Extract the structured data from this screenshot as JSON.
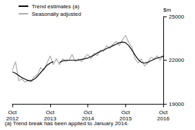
{
  "chart_data": {
    "type": "line",
    "ylabel": "$m",
    "annotations": [
      "(a) Trend break has been applied to January 2014."
    ],
    "categories": [
      "Oct 2012",
      null,
      null,
      null,
      null,
      null,
      null,
      null,
      null,
      null,
      null,
      null,
      "Oct 2013",
      null,
      null,
      null,
      null,
      null,
      null,
      null,
      null,
      null,
      null,
      null,
      "Oct 2014",
      null,
      null,
      null,
      null,
      null,
      null,
      null,
      null,
      null,
      null,
      null,
      "Oct 2015",
      null,
      null,
      null,
      null,
      null,
      null,
      null,
      null,
      null,
      null,
      null,
      "Oct 2016"
    ],
    "series": [
      {
        "name": "Trend estimates (a)",
        "color": "#000000",
        "values": [
          21200,
          21100,
          20950,
          20800,
          20700,
          20600,
          20600,
          20700,
          20900,
          21150,
          21400,
          21650,
          21800,
          21900,
          null,
          21850,
          21950,
          22000,
          22000,
          22000,
          22000,
          22000,
          22050,
          22100,
          22150,
          22250,
          22350,
          22500,
          22600,
          22700,
          22800,
          22900,
          23000,
          23100,
          23200,
          23250,
          23200,
          23000,
          22700,
          22350,
          22050,
          21850,
          21800,
          21850,
          21950,
          22050,
          22150,
          22200,
          22250
        ]
      },
      {
        "name": "Seasonally adjusted",
        "color": "#aaaaaa",
        "values": [
          21300,
          21900,
          20600,
          20700,
          20500,
          20600,
          20500,
          20900,
          21000,
          21500,
          21300,
          21800,
          22300,
          21700,
          22100,
          21700,
          22100,
          21900,
          22000,
          22400,
          21900,
          22100,
          21900,
          22200,
          22400,
          22100,
          22500,
          22300,
          22700,
          22600,
          23000,
          22800,
          23100,
          23300,
          23000,
          23400,
          23700,
          23200,
          22900,
          22100,
          21800,
          22100,
          21600,
          21800,
          22200,
          22100,
          22300,
          22000,
          22400
        ]
      }
    ],
    "ylim": [
      19000,
      25000
    ],
    "yticks": [
      19000,
      22000,
      25000
    ],
    "grid": false,
    "legend": "top-left"
  }
}
